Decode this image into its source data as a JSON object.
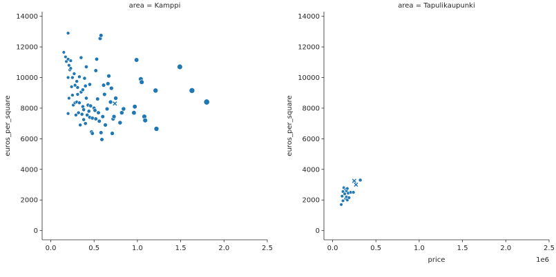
{
  "chart_data": [
    {
      "type": "scatter",
      "title": "area = Kamppi",
      "xlabel": "",
      "ylabel": "euros_per_square",
      "xlim": [
        -0.1,
        2.5
      ],
      "ylim": [
        -600,
        14300
      ],
      "xticks": [
        "0.0",
        "0.5",
        "1.0",
        "1.5",
        "2.0",
        "2.5"
      ],
      "xtick_values": [
        0,
        0.5,
        1.0,
        1.5,
        2.0,
        2.5
      ],
      "yticks": [
        "0",
        "2000",
        "4000",
        "6000",
        "8000",
        "10000",
        "12000",
        "14000"
      ],
      "ytick_values": [
        0,
        2000,
        4000,
        6000,
        8000,
        10000,
        12000,
        14000
      ],
      "marker_color": "#1f77b4",
      "points": [
        {
          "x": 0.15,
          "y": 11650
        },
        {
          "x": 0.17,
          "y": 11350
        },
        {
          "x": 0.18,
          "y": 11050
        },
        {
          "x": 0.2,
          "y": 12900
        },
        {
          "x": 0.2,
          "y": 11200
        },
        {
          "x": 0.21,
          "y": 10800
        },
        {
          "x": 0.22,
          "y": 10500
        },
        {
          "x": 0.23,
          "y": 11100
        },
        {
          "x": 0.23,
          "y": 10600
        },
        {
          "x": 0.2,
          "y": 10000
        },
        {
          "x": 0.21,
          "y": 8650
        },
        {
          "x": 0.2,
          "y": 7650
        },
        {
          "x": 0.24,
          "y": 9400
        },
        {
          "x": 0.25,
          "y": 10000
        },
        {
          "x": 0.25,
          "y": 8850
        },
        {
          "x": 0.26,
          "y": 8200
        },
        {
          "x": 0.27,
          "y": 10250
        },
        {
          "x": 0.28,
          "y": 9500
        },
        {
          "x": 0.28,
          "y": 8350
        },
        {
          "x": 0.29,
          "y": 7550
        },
        {
          "x": 0.3,
          "y": 9750
        },
        {
          "x": 0.3,
          "y": 8400
        },
        {
          "x": 0.31,
          "y": 9350
        },
        {
          "x": 0.31,
          "y": 8900
        },
        {
          "x": 0.32,
          "y": 7700
        },
        {
          "x": 0.33,
          "y": 10050
        },
        {
          "x": 0.33,
          "y": 8350
        },
        {
          "x": 0.34,
          "y": 6900
        },
        {
          "x": 0.35,
          "y": 11300
        },
        {
          "x": 0.35,
          "y": 9050
        },
        {
          "x": 0.36,
          "y": 7600
        },
        {
          "x": 0.37,
          "y": 9200
        },
        {
          "x": 0.37,
          "y": 8100
        },
        {
          "x": 0.38,
          "y": 7900
        },
        {
          "x": 0.38,
          "y": 7250
        },
        {
          "x": 0.39,
          "y": 9950
        },
        {
          "x": 0.4,
          "y": 9450
        },
        {
          "x": 0.4,
          "y": 7000
        },
        {
          "x": 0.41,
          "y": 10700
        },
        {
          "x": 0.41,
          "y": 8650
        },
        {
          "x": 0.42,
          "y": 7550
        },
        {
          "x": 0.43,
          "y": 8200
        },
        {
          "x": 0.44,
          "y": 7800
        },
        {
          "x": 0.45,
          "y": 9550
        },
        {
          "x": 0.45,
          "y": 7400
        },
        {
          "x": 0.46,
          "y": 8150
        },
        {
          "x": 0.47,
          "y": 6450
        },
        {
          "x": 0.48,
          "y": 7350
        },
        {
          "x": 0.48,
          "y": 6350
        },
        {
          "x": 0.5,
          "y": 8000
        },
        {
          "x": 0.51,
          "y": 7850
        },
        {
          "x": 0.52,
          "y": 10450
        },
        {
          "x": 0.52,
          "y": 7300
        },
        {
          "x": 0.53,
          "y": 11200
        },
        {
          "x": 0.54,
          "y": 8600
        },
        {
          "x": 0.55,
          "y": 7700
        },
        {
          "x": 0.56,
          "y": 7150
        },
        {
          "x": 0.57,
          "y": 12550
        },
        {
          "x": 0.58,
          "y": 12750
        },
        {
          "x": 0.58,
          "y": 6400
        },
        {
          "x": 0.59,
          "y": 5950
        },
        {
          "x": 0.6,
          "y": 7450
        },
        {
          "x": 0.61,
          "y": 9500
        },
        {
          "x": 0.62,
          "y": 8900
        },
        {
          "x": 0.63,
          "y": 6900
        },
        {
          "x": 0.65,
          "y": 7950
        },
        {
          "x": 0.66,
          "y": 9600
        },
        {
          "x": 0.67,
          "y": 10100
        },
        {
          "x": 0.69,
          "y": 8400
        },
        {
          "x": 0.7,
          "y": 9300
        },
        {
          "x": 0.71,
          "y": 6350
        },
        {
          "x": 0.72,
          "y": 7300
        },
        {
          "x": 0.73,
          "y": 7450
        },
        {
          "x": 0.75,
          "y": 8650
        },
        {
          "x": 0.8,
          "y": 7050
        },
        {
          "x": 0.82,
          "y": 7700
        },
        {
          "x": 0.84,
          "y": 7950
        },
        {
          "x": 0.96,
          "y": 7700
        },
        {
          "x": 0.97,
          "y": 8100
        },
        {
          "x": 0.99,
          "y": 11150
        },
        {
          "x": 1.04,
          "y": 9900
        },
        {
          "x": 1.05,
          "y": 9700
        },
        {
          "x": 1.08,
          "y": 7450
        },
        {
          "x": 1.09,
          "y": 7200
        },
        {
          "x": 1.21,
          "y": 9150
        },
        {
          "x": 1.22,
          "y": 6650
        },
        {
          "x": 1.49,
          "y": 10700
        },
        {
          "x": 1.63,
          "y": 9150
        },
        {
          "x": 1.8,
          "y": 8400
        }
      ],
      "x_markers": [
        {
          "x": 0.74,
          "y": 8300
        }
      ]
    },
    {
      "type": "scatter",
      "title": "area = Tapulikaupunki",
      "xlabel": "price",
      "ylabel": "euros_per_square",
      "x_offset_label": "1e6",
      "xlim": [
        -0.1,
        2.5
      ],
      "ylim": [
        -600,
        14300
      ],
      "xticks": [
        "0.0",
        "0.5",
        "1.0",
        "1.5",
        "2.0",
        "2.5"
      ],
      "xtick_values": [
        0,
        0.5,
        1.0,
        1.5,
        2.0,
        2.5
      ],
      "yticks": [
        "0",
        "2000",
        "4000",
        "6000",
        "8000",
        "10000",
        "12000",
        "14000"
      ],
      "ytick_values": [
        0,
        2000,
        4000,
        6000,
        8000,
        10000,
        12000,
        14000
      ],
      "marker_color": "#1f77b4",
      "points": [
        {
          "x": 0.1,
          "y": 1700
        },
        {
          "x": 0.11,
          "y": 2250
        },
        {
          "x": 0.12,
          "y": 2550
        },
        {
          "x": 0.12,
          "y": 1950
        },
        {
          "x": 0.13,
          "y": 2800
        },
        {
          "x": 0.14,
          "y": 2400
        },
        {
          "x": 0.15,
          "y": 2700
        },
        {
          "x": 0.15,
          "y": 2100
        },
        {
          "x": 0.16,
          "y": 2600
        },
        {
          "x": 0.16,
          "y": 2200
        },
        {
          "x": 0.17,
          "y": 2750
        },
        {
          "x": 0.17,
          "y": 2000
        },
        {
          "x": 0.18,
          "y": 2450
        },
        {
          "x": 0.19,
          "y": 2150
        },
        {
          "x": 0.21,
          "y": 2500
        },
        {
          "x": 0.24,
          "y": 2500
        },
        {
          "x": 0.32,
          "y": 3300
        }
      ],
      "x_markers": [
        {
          "x": 0.25,
          "y": 3250
        },
        {
          "x": 0.27,
          "y": 3000
        }
      ]
    }
  ]
}
